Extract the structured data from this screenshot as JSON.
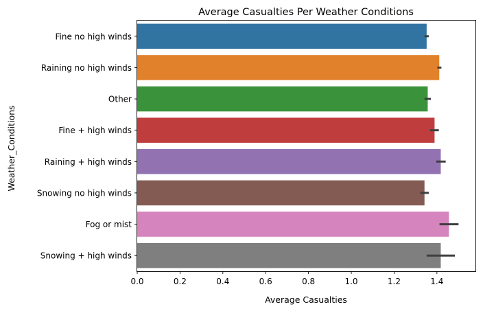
{
  "chart_data": {
    "type": "bar",
    "orientation": "horizontal",
    "title": "Average Casualties Per Weather Conditions",
    "xlabel": "Average Casualties",
    "ylabel": "Weather_Conditions",
    "xlim": [
      0,
      1.58
    ],
    "xticks": [
      "0.0",
      "0.2",
      "0.4",
      "0.6",
      "0.8",
      "1.0",
      "1.2",
      "1.4"
    ],
    "grid": false,
    "legend": "none",
    "categories": [
      "Fine no high winds",
      "Raining no high winds",
      "Other",
      "Fine + high winds",
      "Raining + high winds",
      "Snowing no high winds",
      "Fog or mist",
      "Snowing + high winds"
    ],
    "values": [
      1.352,
      1.411,
      1.357,
      1.389,
      1.418,
      1.342,
      1.456,
      1.418
    ],
    "error_low": [
      1.342,
      1.402,
      1.342,
      1.368,
      1.397,
      1.322,
      1.412,
      1.352
    ],
    "error_high": [
      1.362,
      1.421,
      1.372,
      1.409,
      1.441,
      1.362,
      1.501,
      1.484
    ],
    "colors": [
      "#3274a1",
      "#e1812c",
      "#3a923a",
      "#c03d3e",
      "#9372b2",
      "#845b53",
      "#d684bd",
      "#7f7f7f"
    ]
  }
}
